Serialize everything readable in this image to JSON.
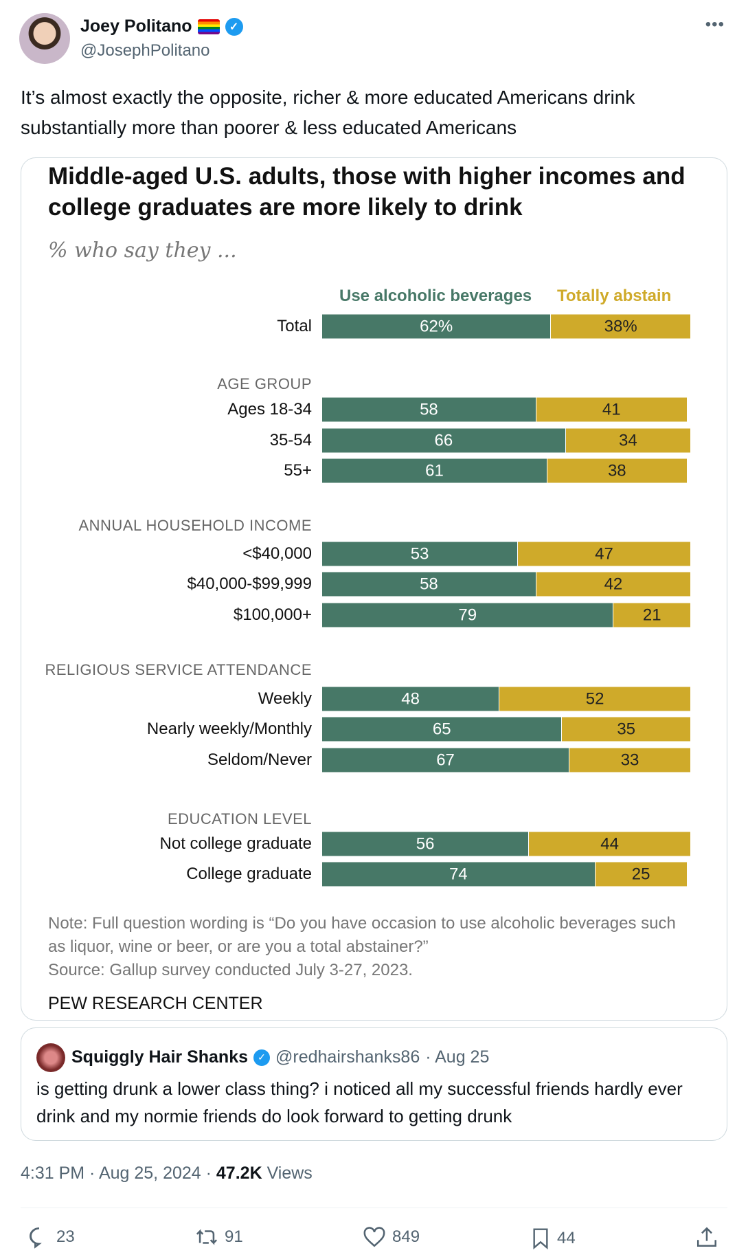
{
  "author": {
    "name": "Joey Politano",
    "handle": "@JosephPolitano"
  },
  "tweet_text": "It’s almost exactly the opposite, richer & more educated Americans drink substantially more than poorer & less educated Americans",
  "chart_data": {
    "type": "bar",
    "title": "Middle-aged U.S. adults, those with higher incomes and college graduates are more likely to drink",
    "subtitle": "% who say they ...",
    "legend": [
      "Use alcoholic beverages",
      "Totally abstain"
    ],
    "colors": {
      "use": "#477867",
      "abstain": "#cfaa2a"
    },
    "rows": [
      {
        "label": "Total",
        "use": 62,
        "abstain": 38,
        "use_label": "62%",
        "abstain_label": "38%"
      },
      {
        "group": "AGE GROUP"
      },
      {
        "label": "Ages 18-34",
        "use": 58,
        "abstain": 41
      },
      {
        "label": "35-54",
        "use": 66,
        "abstain": 34
      },
      {
        "label": "55+",
        "use": 61,
        "abstain": 38
      },
      {
        "group": "ANNUAL HOUSEHOLD INCOME"
      },
      {
        "label": "<$40,000",
        "use": 53,
        "abstain": 47
      },
      {
        "label": "$40,000-$99,999",
        "use": 58,
        "abstain": 42
      },
      {
        "label": "$100,000+",
        "use": 79,
        "abstain": 21
      },
      {
        "group": "RELIGIOUS SERVICE ATTENDANCE"
      },
      {
        "label": "Weekly",
        "use": 48,
        "abstain": 52
      },
      {
        "label": "Nearly weekly/Monthly",
        "use": 65,
        "abstain": 35
      },
      {
        "label": "Seldom/Never",
        "use": 67,
        "abstain": 33
      },
      {
        "group": "EDUCATION LEVEL"
      },
      {
        "label": "Not college graduate",
        "use": 56,
        "abstain": 44
      },
      {
        "label": "College graduate",
        "use": 74,
        "abstain": 25
      }
    ],
    "xlim": [
      0,
      100
    ],
    "note": "Note: Full question wording is “Do you have occasion to use alcoholic beverages such as liquor, wine or beer, or are you a total abstainer?”",
    "source": "Source: Gallup survey conducted July 3-27, 2023.",
    "credit": "PEW RESEARCH CENTER"
  },
  "quote": {
    "name": "Squiggly Hair Shanks",
    "handle": "@redhairshanks86",
    "date": "· Aug 25",
    "text": "is getting drunk a lower class thing? i noticed all my successful friends hardly ever drink and my normie friends do look forward to getting drunk"
  },
  "meta": {
    "time": "4:31 PM · Aug 25, 2024 · ",
    "views": "47.2K",
    "views_label": " Views"
  },
  "actions": {
    "replies": "23",
    "reposts": "91",
    "likes": "849",
    "bookmarks": "44"
  }
}
